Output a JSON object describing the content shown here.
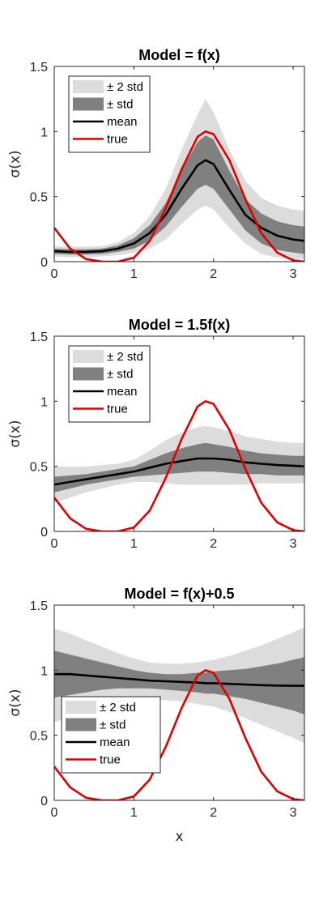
{
  "chart_data": [
    {
      "type": "line",
      "title": "Model = f(x)",
      "xlabel": "",
      "ylabel": "σ(x)",
      "xlim": [
        0,
        3.1416
      ],
      "ylim": [
        0,
        1.5
      ],
      "x_ticks": [
        "0",
        "1",
        "2",
        "3"
      ],
      "y_ticks": [
        "0",
        "0.5",
        "1",
        "1.5"
      ],
      "grid": false,
      "legend_position": "top-left",
      "legend": [
        "± 2 std",
        "± std",
        "mean",
        "true"
      ],
      "x": [
        0,
        0.2,
        0.4,
        0.6,
        0.8,
        1.0,
        1.2,
        1.4,
        1.6,
        1.8,
        1.9,
        2.0,
        2.2,
        2.4,
        2.6,
        2.8,
        3.0,
        3.1416
      ],
      "mean": [
        0.08,
        0.075,
        0.075,
        0.08,
        0.1,
        0.14,
        0.22,
        0.36,
        0.56,
        0.74,
        0.78,
        0.75,
        0.55,
        0.36,
        0.26,
        0.2,
        0.17,
        0.16
      ],
      "std_lower": [
        0.06,
        0.055,
        0.055,
        0.06,
        0.075,
        0.1,
        0.16,
        0.27,
        0.42,
        0.56,
        0.59,
        0.56,
        0.4,
        0.24,
        0.14,
        0.09,
        0.07,
        0.06
      ],
      "std_upper": [
        0.1,
        0.095,
        0.095,
        0.1,
        0.125,
        0.18,
        0.28,
        0.45,
        0.7,
        0.92,
        0.97,
        0.94,
        0.7,
        0.48,
        0.37,
        0.31,
        0.28,
        0.27
      ],
      "std2_lower": [
        0.04,
        0.035,
        0.035,
        0.04,
        0.05,
        0.07,
        0.1,
        0.17,
        0.29,
        0.4,
        0.43,
        0.4,
        0.26,
        0.14,
        0.06,
        0.03,
        0.02,
        0.02
      ],
      "std2_upper": [
        0.12,
        0.115,
        0.115,
        0.12,
        0.15,
        0.22,
        0.35,
        0.56,
        0.86,
        1.13,
        1.25,
        1.15,
        0.86,
        0.62,
        0.49,
        0.43,
        0.4,
        0.39
      ],
      "true": [
        0.26,
        0.1,
        0.02,
        0.0,
        0.0,
        0.03,
        0.16,
        0.41,
        0.71,
        0.96,
        1.0,
        0.98,
        0.78,
        0.48,
        0.22,
        0.07,
        0.01,
        0.0
      ]
    },
    {
      "type": "line",
      "title": "Model = 1.5f(x)",
      "xlabel": "",
      "ylabel": "σ(x)",
      "xlim": [
        0,
        3.1416
      ],
      "ylim": [
        0,
        1.5
      ],
      "x_ticks": [
        "0",
        "1",
        "2",
        "3"
      ],
      "y_ticks": [
        "0",
        "0.5",
        "1",
        "1.5"
      ],
      "grid": false,
      "legend_position": "top-left",
      "legend": [
        "± 2 std",
        "± std",
        "mean",
        "true"
      ],
      "x": [
        0,
        0.2,
        0.4,
        0.6,
        0.8,
        1.0,
        1.2,
        1.4,
        1.6,
        1.8,
        1.9,
        2.0,
        2.2,
        2.4,
        2.6,
        2.8,
        3.0,
        3.1416
      ],
      "mean": [
        0.36,
        0.38,
        0.4,
        0.42,
        0.44,
        0.46,
        0.49,
        0.52,
        0.54,
        0.56,
        0.56,
        0.56,
        0.55,
        0.53,
        0.52,
        0.51,
        0.505,
        0.5
      ],
      "std_lower": [
        0.3,
        0.33,
        0.36,
        0.38,
        0.4,
        0.42,
        0.43,
        0.44,
        0.45,
        0.46,
        0.46,
        0.46,
        0.45,
        0.44,
        0.44,
        0.43,
        0.43,
        0.43
      ],
      "std_upper": [
        0.42,
        0.43,
        0.44,
        0.46,
        0.48,
        0.5,
        0.55,
        0.6,
        0.64,
        0.67,
        0.68,
        0.67,
        0.65,
        0.62,
        0.6,
        0.59,
        0.58,
        0.58
      ],
      "std2_lower": [
        0.22,
        0.26,
        0.3,
        0.33,
        0.36,
        0.38,
        0.38,
        0.37,
        0.36,
        0.36,
        0.36,
        0.36,
        0.36,
        0.36,
        0.37,
        0.37,
        0.37,
        0.37
      ],
      "std2_upper": [
        0.5,
        0.5,
        0.5,
        0.51,
        0.52,
        0.55,
        0.62,
        0.7,
        0.76,
        0.8,
        0.81,
        0.8,
        0.77,
        0.73,
        0.71,
        0.69,
        0.68,
        0.68
      ],
      "true": [
        0.26,
        0.1,
        0.02,
        0.0,
        0.0,
        0.03,
        0.16,
        0.41,
        0.71,
        0.96,
        1.0,
        0.98,
        0.78,
        0.48,
        0.22,
        0.07,
        0.01,
        0.0
      ]
    },
    {
      "type": "line",
      "title": "Model = f(x)+0.5",
      "xlabel": "x",
      "ylabel": "σ(x)",
      "xlim": [
        0,
        3.1416
      ],
      "ylim": [
        0,
        1.5
      ],
      "x_ticks": [
        "0",
        "1",
        "2",
        "3"
      ],
      "y_ticks": [
        "0",
        "0.5",
        "1",
        "1.5"
      ],
      "grid": false,
      "legend_position": "bottom-left",
      "legend": [
        "± 2 std",
        "± std",
        "mean",
        "true"
      ],
      "x": [
        0,
        0.2,
        0.4,
        0.6,
        0.8,
        1.0,
        1.2,
        1.4,
        1.6,
        1.8,
        1.9,
        2.0,
        2.2,
        2.4,
        2.6,
        2.8,
        3.0,
        3.1416
      ],
      "mean": [
        0.97,
        0.97,
        0.96,
        0.95,
        0.94,
        0.93,
        0.92,
        0.915,
        0.91,
        0.905,
        0.9,
        0.9,
        0.895,
        0.89,
        0.885,
        0.882,
        0.88,
        0.88
      ],
      "std_lower": [
        0.79,
        0.81,
        0.83,
        0.85,
        0.86,
        0.86,
        0.86,
        0.85,
        0.84,
        0.83,
        0.82,
        0.82,
        0.8,
        0.78,
        0.75,
        0.72,
        0.69,
        0.66
      ],
      "std_upper": [
        1.15,
        1.12,
        1.09,
        1.06,
        1.03,
        1.0,
        0.98,
        0.97,
        0.97,
        0.98,
        0.98,
        0.99,
        1.0,
        1.01,
        1.03,
        1.05,
        1.08,
        1.1
      ],
      "std2_lower": [
        0.6,
        0.64,
        0.68,
        0.72,
        0.75,
        0.77,
        0.78,
        0.77,
        0.76,
        0.74,
        0.73,
        0.72,
        0.68,
        0.63,
        0.58,
        0.53,
        0.48,
        0.44
      ],
      "std2_upper": [
        1.32,
        1.28,
        1.23,
        1.18,
        1.13,
        1.09,
        1.06,
        1.05,
        1.05,
        1.06,
        1.07,
        1.08,
        1.11,
        1.15,
        1.19,
        1.24,
        1.29,
        1.33
      ],
      "true": [
        0.26,
        0.1,
        0.02,
        0.0,
        0.0,
        0.03,
        0.16,
        0.41,
        0.71,
        0.96,
        1.0,
        0.98,
        0.78,
        0.48,
        0.22,
        0.07,
        0.01,
        0.0
      ]
    }
  ],
  "colors": {
    "band_2std": "#dcdcdc",
    "band_std": "#808080",
    "mean": "#000000",
    "true": "#e00000",
    "axis": "#262626"
  }
}
